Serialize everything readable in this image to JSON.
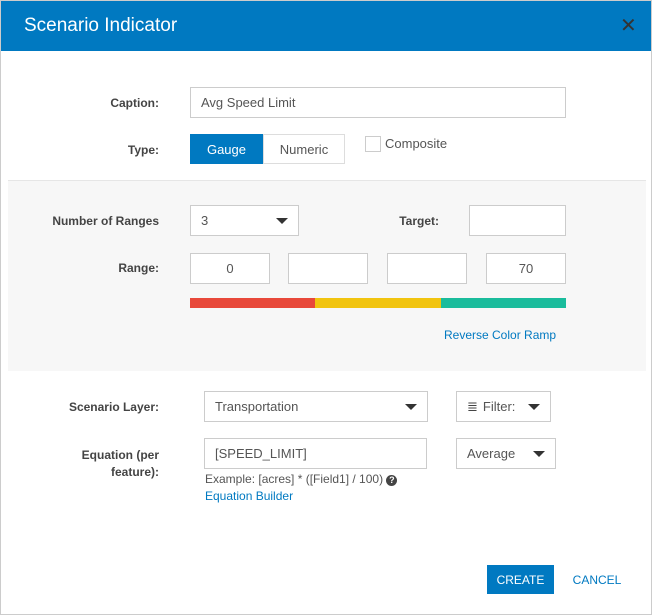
{
  "dialog": {
    "title": "Scenario Indicator",
    "close_icon": "close-icon"
  },
  "caption": {
    "label": "Caption:",
    "value": "Avg Speed Limit"
  },
  "type": {
    "label": "Type:",
    "options": [
      "Gauge",
      "Numeric"
    ],
    "selected": "Gauge",
    "composite_label": "Composite",
    "composite_checked": false
  },
  "ranges": {
    "count_label": "Number of Ranges",
    "count_value": "3",
    "target_label": "Target:",
    "target_value": "",
    "range_label": "Range:",
    "values": [
      "0",
      "",
      "",
      "70"
    ],
    "colors": [
      "#e8483a",
      "#f1c40f",
      "#1abc9c"
    ],
    "reverse_link": "Reverse Color Ramp"
  },
  "layer": {
    "label": "Scenario Layer:",
    "value": "Transportation",
    "filter_label": "Filter:",
    "filter_icon": "layers-icon"
  },
  "equation": {
    "label_line1": "Equation (per",
    "label_line2": "feature):",
    "value": "[SPEED_LIMIT]",
    "aggregate": "Average",
    "example": "Example: [acres] * ([Field1] / 100)",
    "help_icon": "help-icon",
    "builder_link": "Equation Builder"
  },
  "footer": {
    "create": "CREATE",
    "cancel": "CANCEL"
  },
  "colors": {
    "accent": "#0079c1"
  }
}
